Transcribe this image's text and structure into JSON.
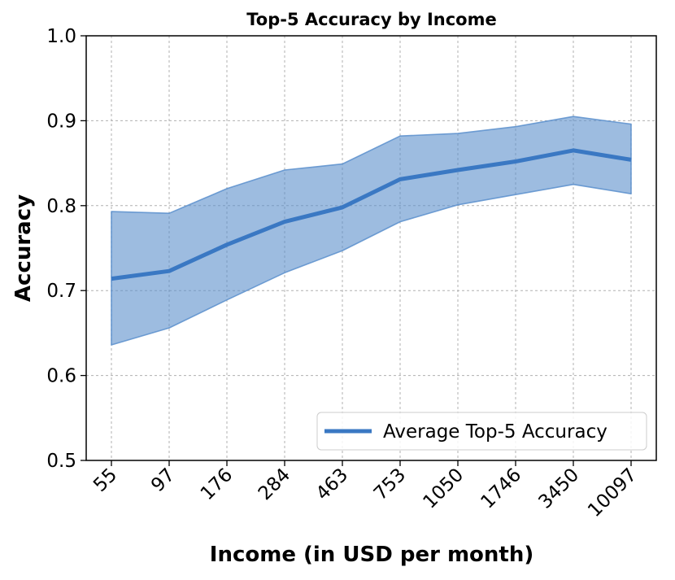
{
  "chart_data": {
    "type": "line",
    "title": "Top-5 Accuracy by Income",
    "xlabel": "Income (in USD per month)",
    "ylabel": "Accuracy",
    "categories": [
      "55",
      "97",
      "176",
      "284",
      "463",
      "753",
      "1050",
      "1746",
      "3450",
      "10097"
    ],
    "series": [
      {
        "name": "Average Top-5 Accuracy",
        "values": [
          0.714,
          0.723,
          0.754,
          0.781,
          0.798,
          0.831,
          0.842,
          0.852,
          0.865,
          0.854
        ],
        "lower": [
          0.636,
          0.656,
          0.689,
          0.721,
          0.747,
          0.781,
          0.801,
          0.813,
          0.825,
          0.814
        ],
        "upper": [
          0.793,
          0.791,
          0.82,
          0.842,
          0.849,
          0.882,
          0.885,
          0.893,
          0.905,
          0.896
        ],
        "color": "#3a78c3",
        "band_color": "#5b8fcc"
      }
    ],
    "ylim": [
      0.5,
      1.0
    ],
    "yticks": [
      "0.5",
      "0.6",
      "0.7",
      "0.8",
      "0.9",
      "1.0"
    ],
    "grid": true,
    "legend_position": "lower-right"
  }
}
